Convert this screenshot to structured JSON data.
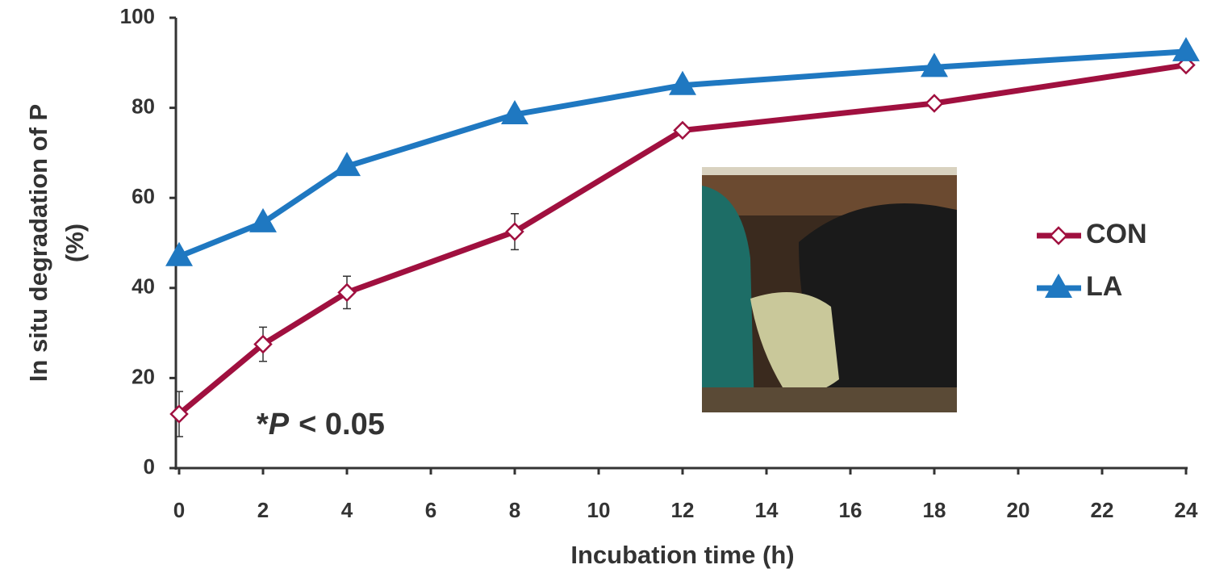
{
  "chart_data": {
    "type": "line",
    "x_label": "Incubation time (h)",
    "y_label": [
      "In situ degradation of P",
      "(%)"
    ],
    "annotation": [
      "*",
      "P",
      "< 0.05"
    ],
    "x": [
      0,
      2,
      4,
      8,
      12,
      18,
      24
    ],
    "series": [
      {
        "name": "CON",
        "color": "#a0103f",
        "marker": "diamond",
        "values": [
          12,
          27.5,
          39,
          52.5,
          75,
          81,
          89.5
        ],
        "errors": [
          5,
          3.8,
          3.6,
          4,
          0.5,
          0.5,
          0.5
        ]
      },
      {
        "name": "LA",
        "color": "#1f78c1",
        "marker": "triangle",
        "values": [
          47,
          54.5,
          67,
          78.5,
          85,
          89,
          92.5
        ]
      }
    ],
    "xlim": [
      0,
      24
    ],
    "xticks": [
      0,
      2,
      4,
      6,
      8,
      10,
      12,
      14,
      16,
      18,
      20,
      22,
      24
    ],
    "ylim": [
      0,
      100
    ],
    "yticks": [
      0,
      20,
      40,
      60,
      80,
      100
    ],
    "grid": false
  }
}
